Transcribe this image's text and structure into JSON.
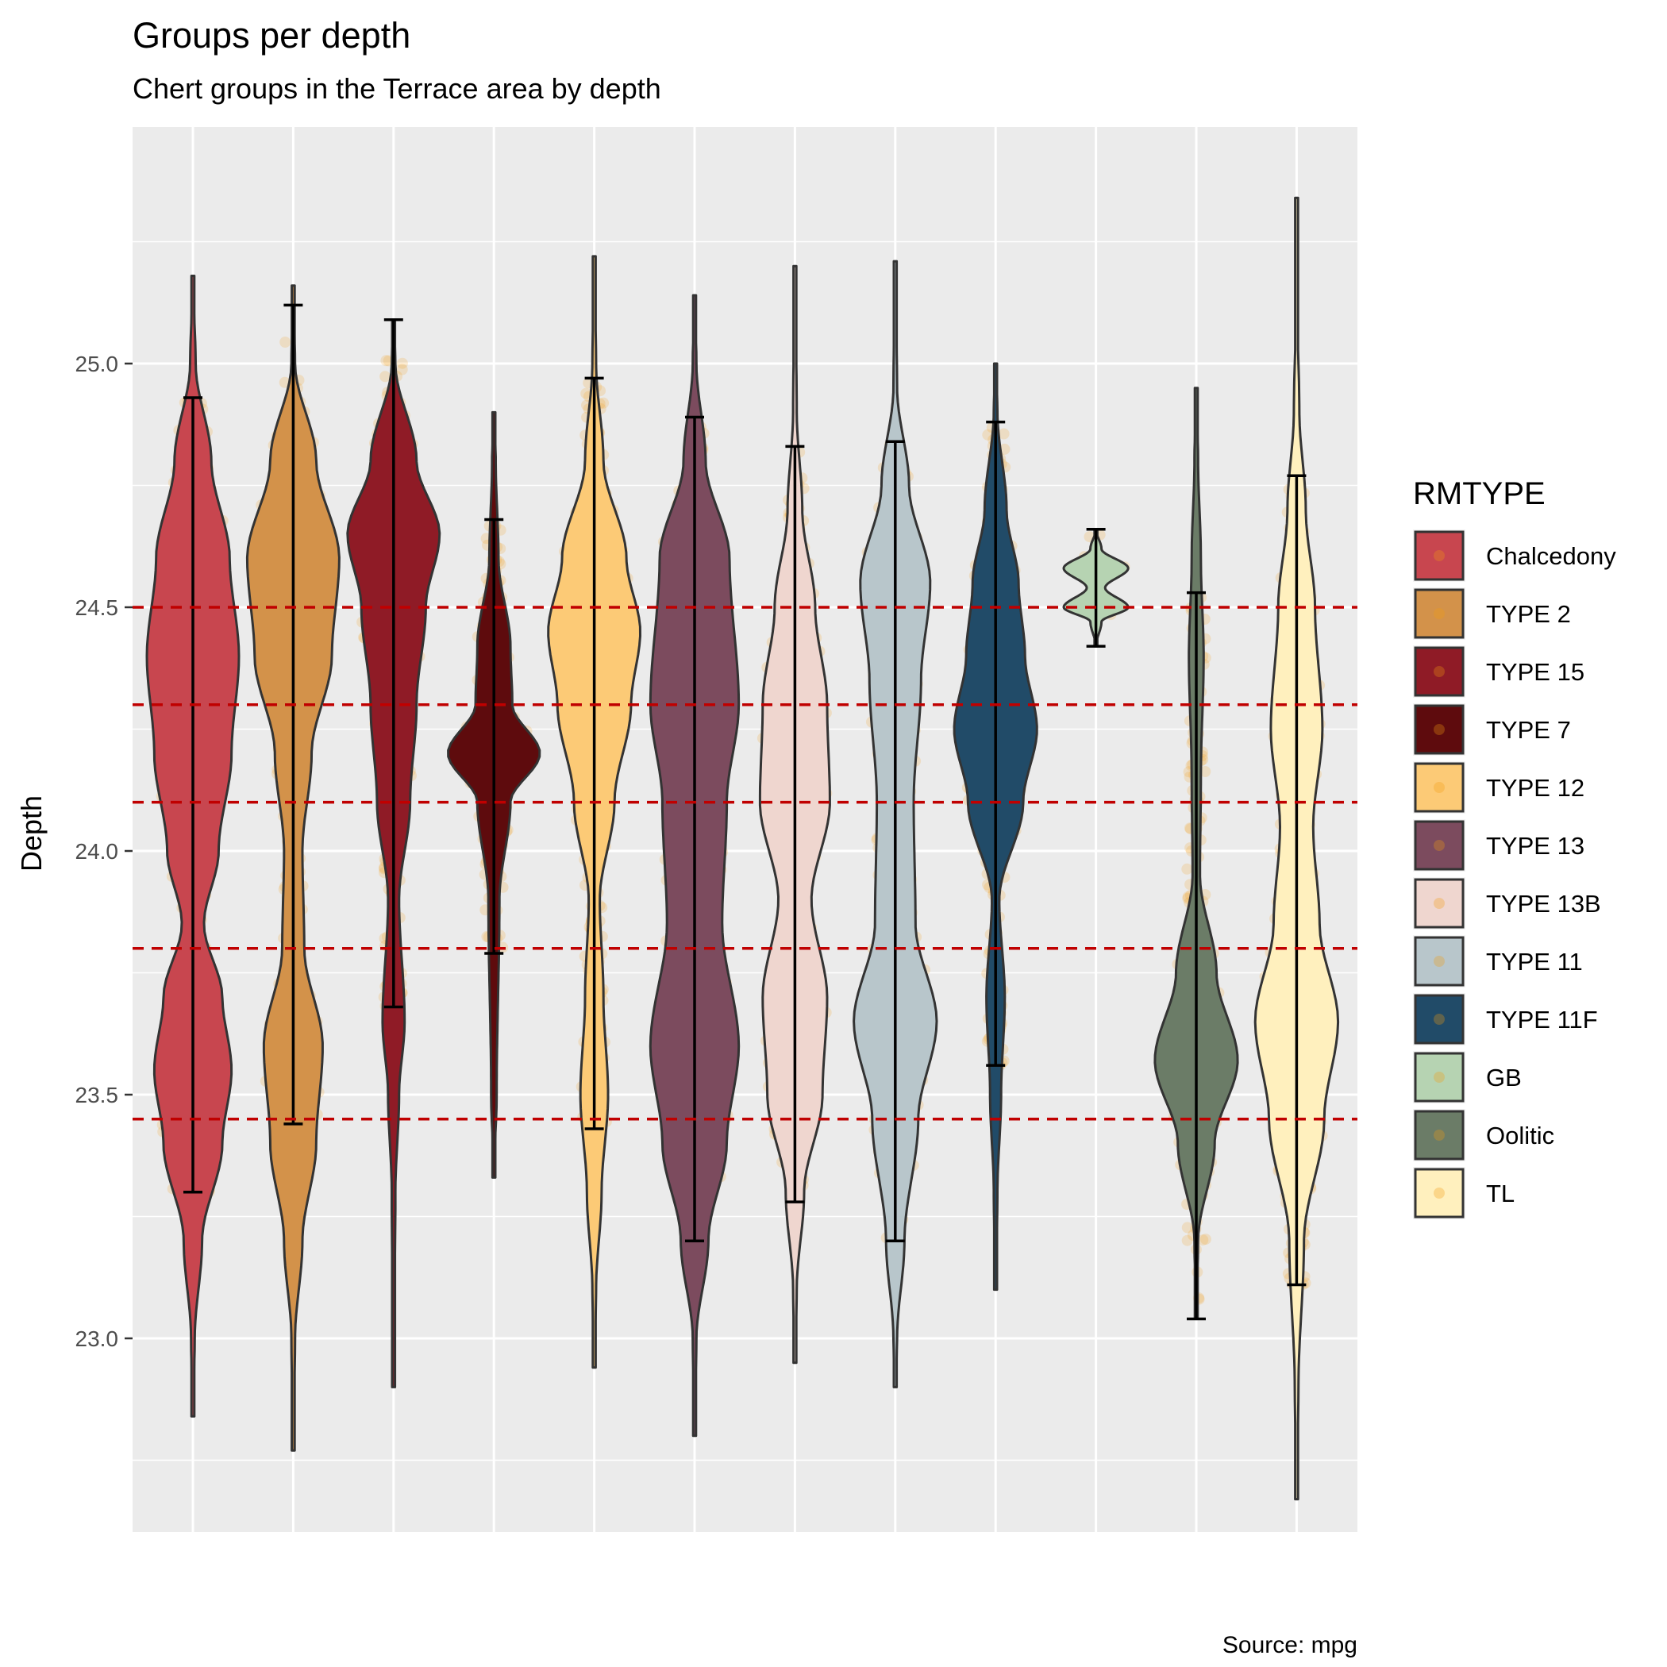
{
  "chart_data": {
    "type": "violin",
    "title": "Groups per depth",
    "subtitle": "Chert groups in the Terrace area by depth",
    "caption": "Source: mpg",
    "xlabel": "",
    "ylabel": "Depth",
    "ylim": [
      22.6,
      25.5
    ],
    "yticks": [
      23.0,
      23.5,
      24.0,
      24.5,
      25.0
    ],
    "ytick_labels": [
      "23.0",
      "23.5",
      "24.0",
      "24.5",
      "25.0"
    ],
    "grid": true,
    "panel_background": "#ebebeb",
    "reference_lines": {
      "color": "#c00000",
      "style": "dashed",
      "y": [
        24.5,
        24.3,
        24.1,
        23.8,
        23.45
      ]
    },
    "legend": {
      "title": "RMTYPE",
      "position": "right"
    },
    "groups": [
      {
        "name": "Chalcedony",
        "color": "#c8464f",
        "min": 22.84,
        "max": 25.18,
        "whisker_low": 23.3,
        "whisker_high": 24.93,
        "density": [
          [
            23.0,
            0.02
          ],
          [
            23.2,
            0.1
          ],
          [
            23.4,
            0.32
          ],
          [
            23.55,
            0.42
          ],
          [
            23.7,
            0.32
          ],
          [
            23.85,
            0.12
          ],
          [
            24.0,
            0.28
          ],
          [
            24.2,
            0.42
          ],
          [
            24.4,
            0.5
          ],
          [
            24.6,
            0.4
          ],
          [
            24.8,
            0.2
          ],
          [
            25.0,
            0.03
          ]
        ]
      },
      {
        "name": "TYPE 2",
        "color": "#d3924a",
        "min": 22.77,
        "max": 25.16,
        "whisker_low": 23.44,
        "whisker_high": 25.12,
        "density": [
          [
            23.0,
            0.02
          ],
          [
            23.2,
            0.1
          ],
          [
            23.4,
            0.25
          ],
          [
            23.6,
            0.32
          ],
          [
            23.8,
            0.12
          ],
          [
            24.0,
            0.1
          ],
          [
            24.2,
            0.2
          ],
          [
            24.4,
            0.42
          ],
          [
            24.6,
            0.5
          ],
          [
            24.8,
            0.25
          ],
          [
            25.0,
            0.02
          ]
        ]
      },
      {
        "name": "TYPE 15",
        "color": "#8f1b26",
        "min": 22.9,
        "max": 25.09,
        "whisker_low": 23.68,
        "whisker_high": 25.09,
        "density": [
          [
            23.3,
            0.02
          ],
          [
            23.5,
            0.06
          ],
          [
            23.65,
            0.12
          ],
          [
            23.9,
            0.06
          ],
          [
            24.1,
            0.18
          ],
          [
            24.3,
            0.25
          ],
          [
            24.5,
            0.35
          ],
          [
            24.65,
            0.5
          ],
          [
            24.8,
            0.25
          ],
          [
            25.0,
            0.02
          ]
        ]
      },
      {
        "name": "TYPE 7",
        "color": "#5e0b0d",
        "min": 23.33,
        "max": 24.9,
        "whisker_low": 23.79,
        "whisker_high": 24.68,
        "density": [
          [
            23.5,
            0.03
          ],
          [
            23.9,
            0.06
          ],
          [
            24.1,
            0.18
          ],
          [
            24.2,
            0.5
          ],
          [
            24.3,
            0.2
          ],
          [
            24.42,
            0.18
          ],
          [
            24.6,
            0.05
          ],
          [
            24.8,
            0.02
          ]
        ]
      },
      {
        "name": "TYPE 12",
        "color": "#fcca76",
        "min": 22.94,
        "max": 25.22,
        "whisker_low": 23.43,
        "whisker_high": 24.97,
        "density": [
          [
            23.1,
            0.02
          ],
          [
            23.3,
            0.08
          ],
          [
            23.5,
            0.15
          ],
          [
            23.7,
            0.1
          ],
          [
            23.9,
            0.06
          ],
          [
            24.1,
            0.22
          ],
          [
            24.3,
            0.4
          ],
          [
            24.45,
            0.5
          ],
          [
            24.6,
            0.35
          ],
          [
            24.8,
            0.1
          ],
          [
            25.0,
            0.02
          ]
        ]
      },
      {
        "name": "TYPE 13",
        "color": "#7c4b5e",
        "min": 22.8,
        "max": 25.14,
        "whisker_low": 23.2,
        "whisker_high": 24.89,
        "density": [
          [
            23.0,
            0.02
          ],
          [
            23.2,
            0.15
          ],
          [
            23.4,
            0.35
          ],
          [
            23.6,
            0.48
          ],
          [
            23.85,
            0.3
          ],
          [
            24.1,
            0.35
          ],
          [
            24.3,
            0.48
          ],
          [
            24.6,
            0.38
          ],
          [
            24.8,
            0.12
          ],
          [
            25.0,
            0.02
          ]
        ]
      },
      {
        "name": "TYPE 13B",
        "color": "#efd6cf",
        "min": 22.95,
        "max": 25.2,
        "whisker_low": 23.28,
        "whisker_high": 24.83,
        "density": [
          [
            23.1,
            0.02
          ],
          [
            23.3,
            0.1
          ],
          [
            23.5,
            0.3
          ],
          [
            23.7,
            0.35
          ],
          [
            23.9,
            0.18
          ],
          [
            24.1,
            0.38
          ],
          [
            24.3,
            0.35
          ],
          [
            24.5,
            0.22
          ],
          [
            24.7,
            0.08
          ],
          [
            24.9,
            0.02
          ]
        ]
      },
      {
        "name": "TYPE 11",
        "color": "#b8c6cb",
        "min": 22.9,
        "max": 25.21,
        "whisker_low": 23.2,
        "whisker_high": 24.84,
        "density": [
          [
            23.0,
            0.02
          ],
          [
            23.2,
            0.1
          ],
          [
            23.45,
            0.25
          ],
          [
            23.65,
            0.45
          ],
          [
            23.85,
            0.22
          ],
          [
            24.1,
            0.2
          ],
          [
            24.35,
            0.28
          ],
          [
            24.55,
            0.38
          ],
          [
            24.75,
            0.15
          ],
          [
            24.95,
            0.02
          ]
        ]
      },
      {
        "name": "TYPE 11F",
        "color": "#214b68",
        "min": 23.1,
        "max": 25.0,
        "whisker_low": 23.56,
        "whisker_high": 24.88,
        "density": [
          [
            23.3,
            0.02
          ],
          [
            23.5,
            0.06
          ],
          [
            23.7,
            0.1
          ],
          [
            23.9,
            0.04
          ],
          [
            24.1,
            0.3
          ],
          [
            24.25,
            0.45
          ],
          [
            24.4,
            0.32
          ],
          [
            24.55,
            0.25
          ],
          [
            24.7,
            0.12
          ],
          [
            24.9,
            0.02
          ]
        ]
      },
      {
        "name": "GB",
        "color": "#b6d3b2",
        "min": 24.42,
        "max": 24.66,
        "whisker_low": 24.42,
        "whisker_high": 24.66,
        "density": [
          [
            24.47,
            0.06
          ],
          [
            24.5,
            0.35
          ],
          [
            24.54,
            0.1
          ],
          [
            24.58,
            0.35
          ],
          [
            24.62,
            0.06
          ]
        ]
      },
      {
        "name": "Oolitic",
        "color": "#6b7c67",
        "min": 23.04,
        "max": 24.95,
        "whisker_low": 23.04,
        "whisker_high": 24.53,
        "density": [
          [
            23.2,
            0.02
          ],
          [
            23.4,
            0.2
          ],
          [
            23.57,
            0.45
          ],
          [
            23.75,
            0.22
          ],
          [
            23.95,
            0.04
          ],
          [
            24.15,
            0.05
          ],
          [
            24.4,
            0.08
          ],
          [
            24.6,
            0.05
          ],
          [
            24.8,
            0.02
          ]
        ]
      },
      {
        "name": "TL",
        "color": "#fff0be",
        "min": 22.67,
        "max": 25.34,
        "whisker_low": 23.11,
        "whisker_high": 24.77,
        "density": [
          [
            22.9,
            0.02
          ],
          [
            23.2,
            0.08
          ],
          [
            23.45,
            0.3
          ],
          [
            23.65,
            0.45
          ],
          [
            23.85,
            0.25
          ],
          [
            24.05,
            0.18
          ],
          [
            24.25,
            0.28
          ],
          [
            24.5,
            0.2
          ],
          [
            24.7,
            0.1
          ],
          [
            24.9,
            0.03
          ],
          [
            25.1,
            0.01
          ]
        ]
      }
    ]
  }
}
